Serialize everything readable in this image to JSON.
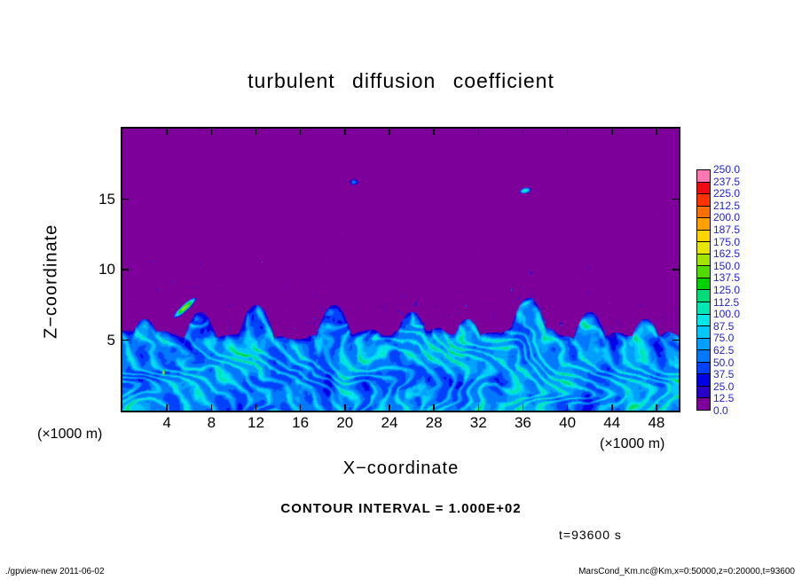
{
  "title": "turbulent diffusion coefficient",
  "axes": {
    "x_label": "X−coordinate",
    "y_label": "Z−coordinate",
    "unit": "(×1000 m)",
    "x_ticks": [
      4,
      8,
      12,
      16,
      20,
      24,
      28,
      32,
      36,
      40,
      44,
      48
    ],
    "y_ticks": [
      5,
      10,
      15
    ],
    "x_range": [
      0,
      50
    ],
    "y_range": [
      0,
      20
    ]
  },
  "colorbar": {
    "levels": [
      0.0,
      12.5,
      25.0,
      37.5,
      50.0,
      62.5,
      75.0,
      87.5,
      100.0,
      112.5,
      125.0,
      137.5,
      150.0,
      162.5,
      175.0,
      187.5,
      200.0,
      212.5,
      225.0,
      237.5,
      250.0
    ],
    "colors": [
      "#7d009b",
      "#2800c8",
      "#0000e6",
      "#0040ff",
      "#0078ff",
      "#00a0ff",
      "#00c8ff",
      "#00e6e6",
      "#00e6b4",
      "#00dc78",
      "#00d200",
      "#50dc00",
      "#a0e600",
      "#e6e600",
      "#ffd200",
      "#ffa000",
      "#ff6e00",
      "#ff3200",
      "#f00a14",
      "#ff78b4"
    ],
    "label_color": "#2222cc"
  },
  "annotations": {
    "contour_interval": "CONTOUR INTERVAL = 1.000E+02",
    "time": "t=93600 s"
  },
  "footer": {
    "left": "./gpview-new  2011-06-02",
    "right": "MarsCond_Km.nc@Km,x=0:50000,z=0:20000,t=93600"
  },
  "chart_data": {
    "type": "heatmap",
    "title": "turbulent diffusion coefficient",
    "xlabel": "X−coordinate (×1000 m)",
    "ylabel": "Z−coordinate (×1000 m)",
    "x_range": [
      0,
      50
    ],
    "z_range": [
      0,
      20
    ],
    "value_range": [
      0,
      250
    ],
    "contour_interval": 100,
    "description": "Turbulent diffusion coefficient field at t=93600 s. Quiescent purple region (value ~0) above a convective boundary layer whose top undulates near z=5-7 km; below it, blue/cyan turbulent eddies and filaments with values mostly 25-110. Sparse small blue speckles above the layer, decreasing with height, plus a cyan-green streak near x=5.6, z=7.3 and a small cyan filament near x=36, z=15.6.",
    "field": {
      "background_value": 0,
      "boundary_layer_top_km": 5.5,
      "boundary_variation_km": 1.5,
      "turbulent_value_range": [
        25,
        110
      ],
      "plume_x": [
        2,
        7,
        12,
        19,
        26,
        31,
        36.5,
        42,
        47
      ],
      "plume_top_km": [
        6.5,
        7.0,
        7.5,
        7.5,
        7.0,
        6.5,
        8.0,
        7.0,
        6.5
      ],
      "features": [
        {
          "x": 5.6,
          "z": 7.3,
          "angle_deg": 35,
          "length": 2.4,
          "width": 0.25,
          "peak_value": 160,
          "note": "cyan-green streak"
        },
        {
          "x": 36.2,
          "z": 15.6,
          "angle_deg": 10,
          "length": 1.0,
          "width": 0.2,
          "peak_value": 110,
          "note": "small cyan filament"
        },
        {
          "x": 3.7,
          "z": 2.7,
          "angle_deg": 80,
          "length": 0.6,
          "width": 0.16,
          "peak_value": 172,
          "note": "small bright spot in mixed layer"
        },
        {
          "x": 20.8,
          "z": 16.2,
          "angle_deg": 0,
          "length": 0.7,
          "width": 0.2,
          "peak_value": 60,
          "note": "speck cluster"
        }
      ],
      "speckle_density": "sparse dots above boundary, decreasing with height"
    }
  }
}
